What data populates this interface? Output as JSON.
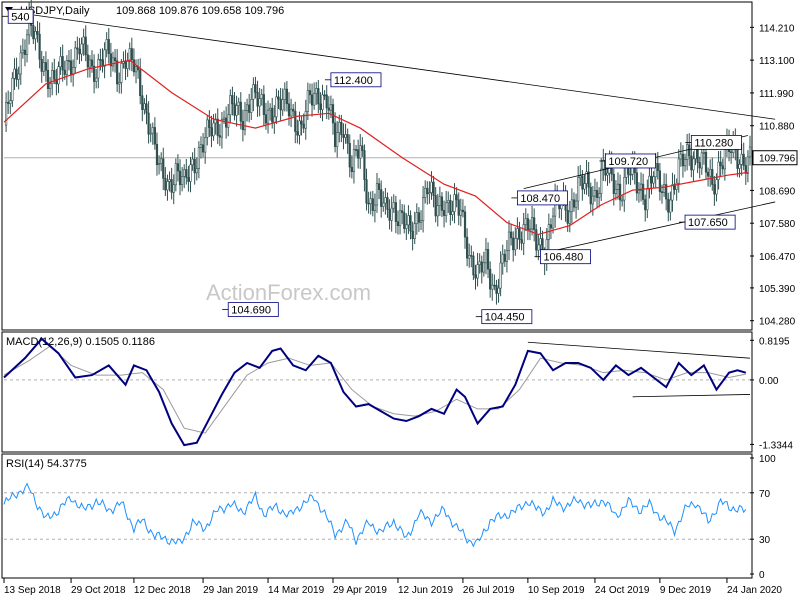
{
  "chart_data": {
    "type": "candlestick",
    "header": {
      "symbol": "USDJPY,Daily",
      "ohlc": "109.868 109.876 109.658 109.796"
    },
    "watermark": "ActionForex.com",
    "price_axis": {
      "ticks": [
        "114.210",
        "113.100",
        "111.990",
        "110.880",
        "109.796",
        "108.690",
        "107.580",
        "106.470",
        "105.390",
        "104.280"
      ],
      "tick_values": [
        114.21,
        113.1,
        111.99,
        110.88,
        109.796,
        108.69,
        107.58,
        106.47,
        105.39,
        104.28
      ],
      "range": [
        104.1,
        115.0
      ],
      "current": "109.796"
    },
    "x_axis": {
      "ticks": [
        "13 Sep 2018",
        "29 Oct 2018",
        "12 Dec 2018",
        "29 Jan 2019",
        "14 Mar 2019",
        "29 Apr 2019",
        "12 Jun 2019",
        "26 Jul 2019",
        "10 Sep 2019",
        "24 Oct 2019",
        "9 Dec 2019",
        "24 Jan 2020"
      ],
      "tick_index": [
        0,
        32,
        62,
        95,
        126,
        157,
        188,
        219,
        250,
        282,
        313,
        345
      ]
    },
    "annotations": [
      {
        "label": "540",
        "bar": 2,
        "price": 114.55
      },
      {
        "label": "112.400",
        "bar": 156,
        "price": 112.4
      },
      {
        "label": "104.690",
        "bar": 107,
        "price": 104.69
      },
      {
        "label": "104.450",
        "bar": 228,
        "price": 104.45
      },
      {
        "label": "108.470",
        "bar": 245,
        "price": 108.47
      },
      {
        "label": "106.480",
        "bar": 256,
        "price": 106.48
      },
      {
        "label": "109.720",
        "bar": 287,
        "price": 109.72
      },
      {
        "label": "110.280",
        "bar": 328,
        "price": 110.28
      },
      {
        "label": "107.650",
        "bar": 325,
        "price": 107.65
      }
    ],
    "trendlines": [
      {
        "from": [
          7,
          114.7
        ],
        "to": [
          368,
          111.1
        ]
      },
      {
        "from": [
          248,
          108.75
        ],
        "to": [
          355,
          110.55
        ]
      },
      {
        "from": [
          256,
          106.55
        ],
        "to": [
          368,
          108.3
        ]
      }
    ],
    "price_path": [
      [
        0,
        110.9
      ],
      [
        6,
        112.7
      ],
      [
        12,
        114.4
      ],
      [
        18,
        113.0
      ],
      [
        24,
        112.4
      ],
      [
        30,
        112.9
      ],
      [
        36,
        113.6
      ],
      [
        42,
        112.7
      ],
      [
        48,
        113.4
      ],
      [
        54,
        112.6
      ],
      [
        58,
        113.3
      ],
      [
        62,
        112.8
      ],
      [
        66,
        111.8
      ],
      [
        70,
        110.9
      ],
      [
        74,
        109.3
      ],
      [
        78,
        108.9
      ],
      [
        82,
        109.4
      ],
      [
        86,
        108.8
      ],
      [
        90,
        109.6
      ],
      [
        94,
        110.2
      ],
      [
        98,
        110.6
      ],
      [
        102,
        110.9
      ],
      [
        108,
        111.4
      ],
      [
        114,
        111.2
      ],
      [
        118,
        112.0
      ],
      [
        124,
        111.3
      ],
      [
        130,
        111.6
      ],
      [
        136,
        111.5
      ],
      [
        142,
        110.8
      ],
      [
        146,
        111.7
      ],
      [
        150,
        112.0
      ],
      [
        154,
        111.8
      ],
      [
        158,
        110.3
      ],
      [
        162,
        111.0
      ],
      [
        166,
        109.5
      ],
      [
        170,
        110.0
      ],
      [
        174,
        108.3
      ],
      [
        178,
        108.6
      ],
      [
        182,
        107.9
      ],
      [
        186,
        108.2
      ],
      [
        190,
        107.7
      ],
      [
        194,
        107.1
      ],
      [
        198,
        108.0
      ],
      [
        202,
        108.8
      ],
      [
        206,
        108.0
      ],
      [
        210,
        108.4
      ],
      [
        214,
        108.1
      ],
      [
        218,
        107.9
      ],
      [
        222,
        106.6
      ],
      [
        226,
        105.8
      ],
      [
        230,
        106.2
      ],
      [
        234,
        105.4
      ],
      [
        238,
        106.2
      ],
      [
        242,
        106.9
      ],
      [
        246,
        107.4
      ],
      [
        250,
        107.5
      ],
      [
        254,
        106.9
      ],
      [
        258,
        106.8
      ],
      [
        262,
        107.9
      ],
      [
        266,
        108.3
      ],
      [
        270,
        108.1
      ],
      [
        274,
        108.7
      ],
      [
        278,
        108.9
      ],
      [
        282,
        108.6
      ],
      [
        286,
        109.3
      ],
      [
        290,
        109.1
      ],
      [
        294,
        108.7
      ],
      [
        298,
        109.3
      ],
      [
        302,
        108.9
      ],
      [
        306,
        108.6
      ],
      [
        310,
        109.2
      ],
      [
        314,
        108.7
      ],
      [
        318,
        108.5
      ],
      [
        322,
        109.3
      ],
      [
        326,
        109.9
      ],
      [
        330,
        110.0
      ],
      [
        334,
        109.5
      ],
      [
        338,
        108.8
      ],
      [
        342,
        109.8
      ],
      [
        346,
        110.0
      ],
      [
        350,
        109.8
      ],
      [
        354,
        109.8
      ]
    ],
    "ma_path": [
      [
        0,
        111.0
      ],
      [
        20,
        112.3
      ],
      [
        40,
        112.8
      ],
      [
        60,
        113.1
      ],
      [
        80,
        112.0
      ],
      [
        100,
        111.1
      ],
      [
        120,
        110.8
      ],
      [
        140,
        111.2
      ],
      [
        155,
        111.3
      ],
      [
        170,
        110.8
      ],
      [
        190,
        109.8
      ],
      [
        210,
        108.9
      ],
      [
        225,
        108.5
      ],
      [
        240,
        107.6
      ],
      [
        255,
        107.2
      ],
      [
        270,
        107.5
      ],
      [
        285,
        108.2
      ],
      [
        300,
        108.7
      ],
      [
        315,
        108.8
      ],
      [
        330,
        109.0
      ],
      [
        345,
        109.2
      ],
      [
        355,
        109.3
      ]
    ],
    "macd": {
      "label": "MACD(12,26,9) 0.1505 0.1186",
      "ticks": [
        "0.8195",
        "0.00",
        "-1.3344"
      ],
      "tick_values": [
        0.8195,
        0.0,
        -1.3344
      ],
      "range": [
        -1.45,
        0.95
      ],
      "main_path": [
        [
          0,
          0.05
        ],
        [
          10,
          0.45
        ],
        [
          18,
          0.85
        ],
        [
          26,
          0.55
        ],
        [
          34,
          0.05
        ],
        [
          42,
          0.1
        ],
        [
          50,
          0.3
        ],
        [
          58,
          -0.1
        ],
        [
          62,
          0.3
        ],
        [
          68,
          0.2
        ],
        [
          74,
          -0.25
        ],
        [
          80,
          -0.9
        ],
        [
          86,
          -1.35
        ],
        [
          92,
          -1.3
        ],
        [
          98,
          -0.8
        ],
        [
          104,
          -0.3
        ],
        [
          110,
          0.15
        ],
        [
          116,
          0.35
        ],
        [
          122,
          0.25
        ],
        [
          128,
          0.6
        ],
        [
          132,
          0.65
        ],
        [
          138,
          0.3
        ],
        [
          144,
          0.2
        ],
        [
          150,
          0.5
        ],
        [
          156,
          0.35
        ],
        [
          162,
          -0.25
        ],
        [
          168,
          -0.55
        ],
        [
          174,
          -0.5
        ],
        [
          180,
          -0.65
        ],
        [
          186,
          -0.8
        ],
        [
          192,
          -0.85
        ],
        [
          198,
          -0.75
        ],
        [
          204,
          -0.6
        ],
        [
          210,
          -0.7
        ],
        [
          216,
          -0.2
        ],
        [
          220,
          -0.35
        ],
        [
          226,
          -0.9
        ],
        [
          232,
          -0.6
        ],
        [
          238,
          -0.55
        ],
        [
          244,
          -0.1
        ],
        [
          250,
          0.6
        ],
        [
          256,
          0.55
        ],
        [
          262,
          0.2
        ],
        [
          268,
          0.35
        ],
        [
          274,
          0.35
        ],
        [
          280,
          0.25
        ],
        [
          286,
          0.0
        ],
        [
          292,
          0.3
        ],
        [
          298,
          0.1
        ],
        [
          304,
          0.25
        ],
        [
          310,
          0.05
        ],
        [
          316,
          -0.15
        ],
        [
          322,
          0.35
        ],
        [
          328,
          0.1
        ],
        [
          334,
          0.3
        ],
        [
          340,
          -0.2
        ],
        [
          346,
          0.15
        ],
        [
          350,
          0.2
        ],
        [
          354,
          0.15
        ]
      ],
      "signal_path": [
        [
          0,
          0.1
        ],
        [
          12,
          0.4
        ],
        [
          22,
          0.7
        ],
        [
          32,
          0.3
        ],
        [
          44,
          0.1
        ],
        [
          56,
          0.1
        ],
        [
          66,
          0.15
        ],
        [
          76,
          -0.2
        ],
        [
          86,
          -1.0
        ],
        [
          96,
          -1.1
        ],
        [
          106,
          -0.5
        ],
        [
          116,
          0.1
        ],
        [
          126,
          0.35
        ],
        [
          136,
          0.45
        ],
        [
          146,
          0.3
        ],
        [
          156,
          0.35
        ],
        [
          166,
          -0.2
        ],
        [
          176,
          -0.55
        ],
        [
          186,
          -0.7
        ],
        [
          196,
          -0.75
        ],
        [
          206,
          -0.65
        ],
        [
          216,
          -0.4
        ],
        [
          226,
          -0.6
        ],
        [
          236,
          -0.6
        ],
        [
          246,
          -0.2
        ],
        [
          256,
          0.45
        ],
        [
          266,
          0.35
        ],
        [
          276,
          0.3
        ],
        [
          286,
          0.15
        ],
        [
          296,
          0.2
        ],
        [
          306,
          0.15
        ],
        [
          316,
          0.0
        ],
        [
          326,
          0.15
        ],
        [
          336,
          0.15
        ],
        [
          346,
          0.05
        ],
        [
          354,
          0.12
        ]
      ],
      "trendlines": [
        {
          "from": [
            250,
            0.78
          ],
          "to": [
            356,
            0.45
          ]
        },
        {
          "from": [
            300,
            -0.35
          ],
          "to": [
            356,
            -0.3
          ]
        }
      ]
    },
    "rsi": {
      "label": "RSI(14) 54.3775",
      "ticks": [
        "100",
        "70",
        "30",
        "0"
      ],
      "tick_values": [
        100,
        70,
        30,
        0
      ],
      "range": [
        0,
        100
      ],
      "path": [
        [
          0,
          60
        ],
        [
          6,
          70
        ],
        [
          12,
          74
        ],
        [
          16,
          60
        ],
        [
          20,
          47
        ],
        [
          26,
          55
        ],
        [
          32,
          66
        ],
        [
          38,
          55
        ],
        [
          44,
          63
        ],
        [
          50,
          55
        ],
        [
          56,
          61
        ],
        [
          62,
          40
        ],
        [
          66,
          46
        ],
        [
          72,
          33
        ],
        [
          78,
          30
        ],
        [
          84,
          26
        ],
        [
          90,
          44
        ],
        [
          96,
          40
        ],
        [
          102,
          55
        ],
        [
          108,
          60
        ],
        [
          114,
          54
        ],
        [
          120,
          66
        ],
        [
          124,
          52
        ],
        [
          130,
          58
        ],
        [
          136,
          50
        ],
        [
          142,
          60
        ],
        [
          148,
          66
        ],
        [
          152,
          55
        ],
        [
          158,
          35
        ],
        [
          164,
          44
        ],
        [
          168,
          30
        ],
        [
          174,
          44
        ],
        [
          180,
          36
        ],
        [
          186,
          46
        ],
        [
          192,
          30
        ],
        [
          198,
          52
        ],
        [
          204,
          46
        ],
        [
          210,
          55
        ],
        [
          216,
          40
        ],
        [
          222,
          29
        ],
        [
          226,
          26
        ],
        [
          232,
          46
        ],
        [
          238,
          50
        ],
        [
          244,
          54
        ],
        [
          250,
          63
        ],
        [
          254,
          56
        ],
        [
          258,
          54
        ],
        [
          262,
          62
        ],
        [
          268,
          58
        ],
        [
          274,
          64
        ],
        [
          280,
          58
        ],
        [
          286,
          64
        ],
        [
          292,
          50
        ],
        [
          298,
          62
        ],
        [
          304,
          55
        ],
        [
          308,
          60
        ],
        [
          314,
          48
        ],
        [
          320,
          38
        ],
        [
          326,
          58
        ],
        [
          330,
          62
        ],
        [
          336,
          45
        ],
        [
          342,
          62
        ],
        [
          346,
          58
        ],
        [
          350,
          56
        ],
        [
          354,
          54
        ]
      ]
    }
  }
}
